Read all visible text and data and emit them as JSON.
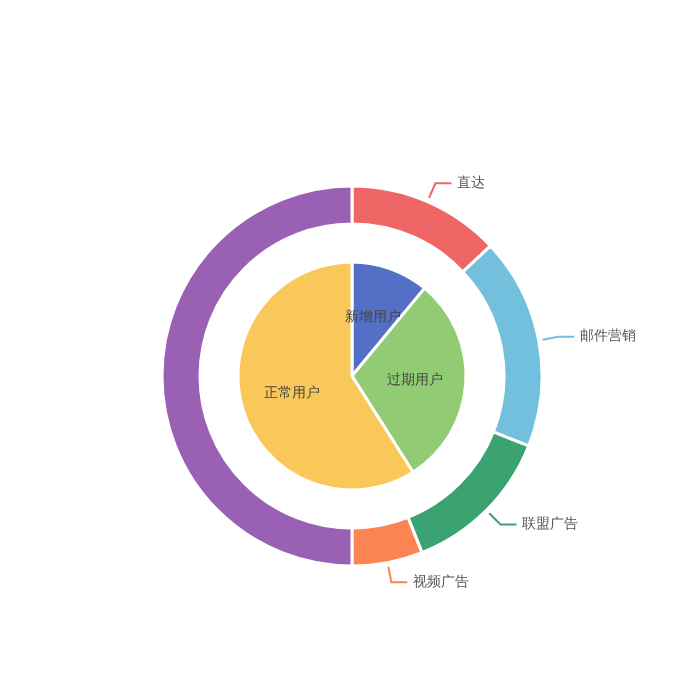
{
  "chart_data": [
    {
      "type": "donut",
      "categories": [
        "直达",
        "邮件营销",
        "联盟广告",
        "视频广告",
        null
      ],
      "values": [
        13,
        18,
        13,
        6,
        50
      ],
      "colors": [
        "#ee6666",
        "#73c0de",
        "#3ba272",
        "#fc8452",
        "#9a60b4"
      ]
    },
    {
      "type": "pie",
      "categories": [
        "新增用户",
        "过期用户",
        "正常用户"
      ],
      "values": [
        11,
        30,
        59
      ],
      "colors": [
        "#5470c6",
        "#91cc75",
        "#fac858"
      ]
    }
  ]
}
